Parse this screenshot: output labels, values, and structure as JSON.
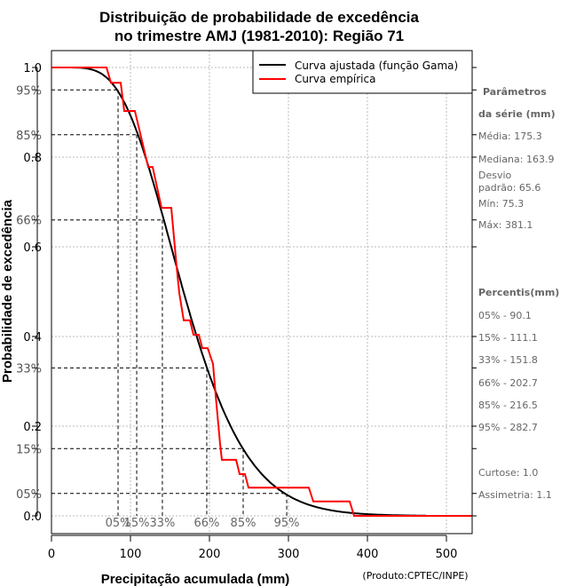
{
  "chart_data": {
    "type": "line",
    "title_line1": "Distribuição de probabilidade de excedência",
    "title_line2": "no trimestre AMJ (1981-2010): Região 71",
    "xlabel": "Precipitação acumulada (mm)",
    "ylabel": "Probabilidade de excedência",
    "credit": "(Produto:CPTEC/INPE)",
    "xlim": [
      0,
      533
    ],
    "ylim": [
      0,
      1
    ],
    "grid": true,
    "x_ticks": [
      "0",
      "100",
      "200",
      "300",
      "400",
      "500"
    ],
    "x_tick_values": [
      0,
      100,
      200,
      300,
      400,
      500
    ],
    "y_ticks": [
      {
        "value": 1.0,
        "label": "1.0",
        "percent": false
      },
      {
        "value": 0.95,
        "label": "95%",
        "percent": true
      },
      {
        "value": 0.85,
        "label": "85%",
        "percent": true
      },
      {
        "value": 0.8,
        "label": "0.8",
        "percent": false
      },
      {
        "value": 0.66,
        "label": "66%",
        "percent": true
      },
      {
        "value": 0.6,
        "label": "0.6",
        "percent": false
      },
      {
        "value": 0.4,
        "label": "0.4",
        "percent": false
      },
      {
        "value": 0.33,
        "label": "33%",
        "percent": true
      },
      {
        "value": 0.2,
        "label": "0.2",
        "percent": false
      },
      {
        "value": 0.15,
        "label": "15%",
        "percent": true
      },
      {
        "value": 0.05,
        "label": "05%",
        "percent": true
      },
      {
        "value": 0.0,
        "label": "0.0",
        "percent": false
      }
    ],
    "legend_position": "top-right",
    "series": [
      {
        "name": "Curva ajustada (função Gama)",
        "color": "#000000",
        "kind": "gamma",
        "mean": 175.3,
        "sd": 65.6,
        "x_max": 474
      },
      {
        "name": "Curva empírica",
        "color": "#ff0000",
        "kind": "step",
        "points": [
          [
            0,
            1.0
          ],
          [
            69.7,
            1.0
          ],
          [
            75.3,
            0.966
          ],
          [
            87.6,
            0.966
          ],
          [
            92.1,
            0.903
          ],
          [
            105.6,
            0.903
          ],
          [
            122.5,
            0.778
          ],
          [
            128.1,
            0.778
          ],
          [
            139.3,
            0.687
          ],
          [
            151.7,
            0.687
          ],
          [
            158.4,
            0.556
          ],
          [
            161.8,
            0.497
          ],
          [
            167.4,
            0.436
          ],
          [
            175.3,
            0.436
          ],
          [
            179.8,
            0.404
          ],
          [
            186.5,
            0.404
          ],
          [
            191.0,
            0.374
          ],
          [
            197.8,
            0.374
          ],
          [
            204.5,
            0.339
          ],
          [
            207.9,
            0.269
          ],
          [
            213.5,
            0.16
          ],
          [
            215.7,
            0.125
          ],
          [
            233.7,
            0.125
          ],
          [
            238.2,
            0.093
          ],
          [
            244.9,
            0.093
          ],
          [
            249.4,
            0.063
          ],
          [
            325.8,
            0.063
          ],
          [
            331.5,
            0.032
          ],
          [
            377.5,
            0.032
          ],
          [
            383.1,
            0.0
          ],
          [
            533,
            0.0
          ]
        ]
      }
    ],
    "percentile_guides": [
      {
        "prob": 0.95,
        "x": 84.3,
        "label": "05%"
      },
      {
        "prob": 0.85,
        "x": 107.9,
        "label": "15%"
      },
      {
        "prob": 0.66,
        "x": 140.4,
        "label": "33%"
      },
      {
        "prob": 0.33,
        "x": 196.6,
        "label": "66%"
      },
      {
        "prob": 0.15,
        "x": 242.7,
        "label": "85%"
      },
      {
        "prob": 0.05,
        "x": 297.8,
        "label": "95%"
      }
    ]
  },
  "side_panel": {
    "params_heading1": "Parâmetros",
    "params_heading2": "da série (mm)",
    "media": "Média: 175.3",
    "mediana": "Mediana: 163.9",
    "desvio1": "Desvio",
    "desvio2": "padrão: 65.6",
    "min": "Mín: 75.3",
    "max": "Máx: 381.1",
    "percentis_heading": "Percentis(mm)",
    "percentis": [
      "05% - 90.1",
      "15% - 111.1",
      "33% - 151.8",
      "66% - 202.7",
      "85% - 216.5",
      "95% - 282.7"
    ],
    "curtose": "Curtose: 1.0",
    "assimetria": "Assimetria: 1.1"
  }
}
